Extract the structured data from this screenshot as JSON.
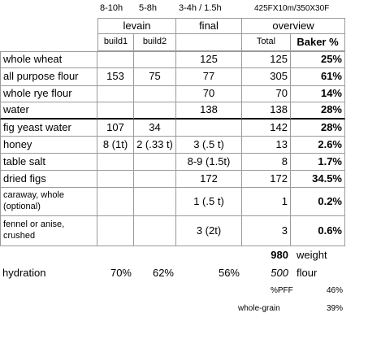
{
  "times": {
    "levain": "8-10h",
    "levain2": "5-8h",
    "final": "3-4h / 1.5h",
    "overview": "425FX10m/350X30F"
  },
  "groups": {
    "levain": "levain",
    "final": "final",
    "overview": "overview"
  },
  "columns": {
    "build1": "build1",
    "build2": "build2",
    "total": "Total",
    "baker": "Baker %"
  },
  "rows": [
    [
      "whole wheat",
      null,
      null,
      "125",
      "125",
      "25%"
    ],
    [
      "all purpose flour",
      "153",
      "75",
      "77",
      "305",
      "61%"
    ],
    [
      "whole rye flour",
      null,
      null,
      "70",
      "70",
      "14%"
    ],
    [
      "water",
      null,
      null,
      "138",
      "138",
      "28%"
    ],
    [
      "fig yeast water",
      "107",
      "34",
      null,
      "142",
      "28%"
    ],
    [
      "honey",
      "8 (1t)",
      "2 (.33 t)",
      "3 (.5 t)",
      "13",
      "2.6%"
    ],
    [
      "table salt",
      null,
      null,
      "8-9 (1.5t)",
      "8",
      "1.7%"
    ],
    [
      "dried figs",
      null,
      null,
      "172",
      "172",
      "34.5%"
    ],
    [
      "caraway, whole (optional)",
      null,
      null,
      "1 (.5 t)",
      "1",
      "0.2%"
    ],
    [
      "fennel or anise, crushed",
      null,
      null,
      "3 (2t)",
      "3",
      "0.6%"
    ]
  ],
  "weight": {
    "value": "980",
    "label": "weight"
  },
  "hydration": {
    "label": "hydration",
    "build1": "70%",
    "build2": "62%",
    "final": "56%",
    "flour_value": "500",
    "flour_label": "flour"
  },
  "pff": {
    "label": "%PFF",
    "value": "46%"
  },
  "whole_grain": {
    "label": "whole-grain",
    "value": "39%"
  }
}
